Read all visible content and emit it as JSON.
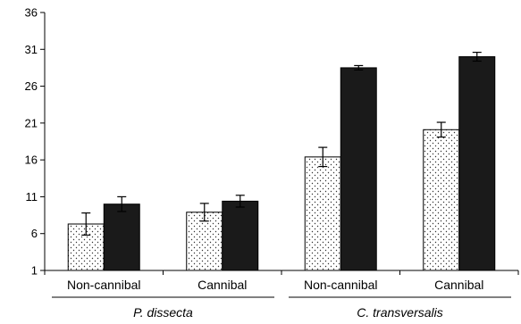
{
  "chart_data": {
    "type": "bar",
    "ylim": [
      1,
      36
    ],
    "yticks": [
      1,
      6,
      11,
      16,
      21,
      26,
      31,
      36
    ],
    "grid": false,
    "legend": "none",
    "groups": [
      {
        "label": "P. dissecta",
        "categories": [
          "Non-cannibal",
          "Cannibal"
        ]
      },
      {
        "label": "C. transversalis",
        "categories": [
          "Non-cannibal",
          "Cannibal"
        ]
      }
    ],
    "categories": [
      "Non-cannibal",
      "Cannibal",
      "Non-cannibal",
      "Cannibal"
    ],
    "series": [
      {
        "fill": "dotted",
        "color": "#ffffff",
        "values": [
          7.3,
          8.9,
          16.4,
          20.1
        ],
        "errors": [
          1.5,
          1.2,
          1.3,
          1.0
        ]
      },
      {
        "fill": "solid",
        "color": "#1a1a1a",
        "values": [
          10.0,
          10.4,
          28.5,
          30.0
        ],
        "errors": [
          1.0,
          0.8,
          0.3,
          0.6
        ]
      }
    ]
  }
}
